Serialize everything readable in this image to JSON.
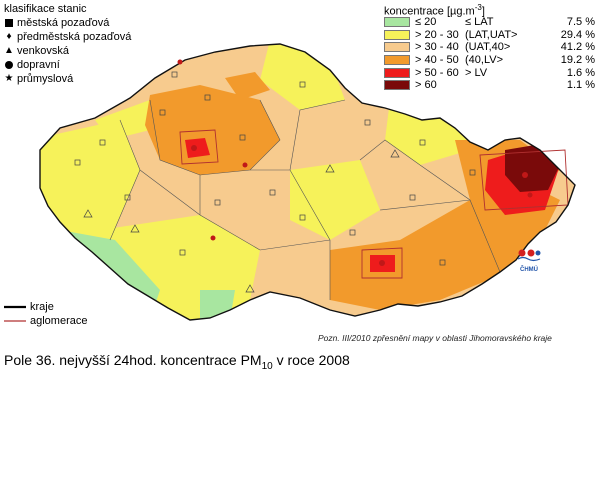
{
  "stations_legend": {
    "title": "klasifikace stanic",
    "items": [
      {
        "label": "městská pozaďová",
        "symbol": "square-filled"
      },
      {
        "label": "předměstská pozaďová",
        "symbol": "diamond-filled"
      },
      {
        "label": "venkovská",
        "symbol": "triangle-filled"
      },
      {
        "label": "dopravní",
        "symbol": "circle-filled"
      },
      {
        "label": "průmyslová",
        "symbol": "star-filled"
      }
    ]
  },
  "concentration_legend": {
    "title": "koncentrace [µg.m",
    "title_sup": "-3",
    "title_end": "]",
    "classes": [
      {
        "range": "≤ 20",
        "class": "≤ LAT",
        "percent": "7.5 %",
        "color": "#a8e6a0"
      },
      {
        "range": "> 20 - 30",
        "class": "(LAT,UAT>",
        "percent": "29.4 %",
        "color": "#f6f25a"
      },
      {
        "range": "> 30 - 40",
        "class": "(UAT,40>",
        "percent": "41.2 %",
        "color": "#f7cb8e"
      },
      {
        "range": "> 40 - 50",
        "class": "(40,LV>",
        "percent": "19.2 %",
        "color": "#f29a2c"
      },
      {
        "range": "> 50 - 60",
        "class": "> LV",
        "percent": "1.6 %",
        "color": "#ee1c1c"
      },
      {
        "range": "> 60",
        "class": "",
        "percent": "1.1 %",
        "color": "#7a0a0a"
      }
    ]
  },
  "lines_legend": {
    "items": [
      {
        "label": "kraje",
        "color": "#000000"
      },
      {
        "label": "aglomerace",
        "color": "#b03030"
      }
    ]
  },
  "note": "Pozn.   III/2010 zpřesnění mapy v oblasti Jihomoravského kraje",
  "caption": {
    "prefix": "Pole 36. nejvyšší 24hod. koncentrace PM",
    "sub": "10",
    "suffix": " v roce 2008"
  },
  "logo": {
    "text": "ČHMÚ"
  }
}
